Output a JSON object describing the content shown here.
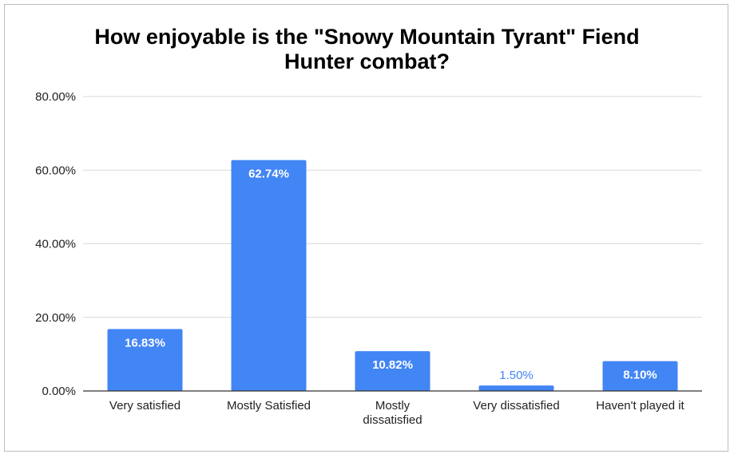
{
  "chart_data": {
    "type": "bar",
    "title_lines": [
      "How enjoyable is the \"Snowy Mountain Tyrant\" Fiend",
      "Hunter combat?"
    ],
    "categories": [
      [
        "Very satisfied"
      ],
      [
        "Mostly Satisfied"
      ],
      [
        "Mostly",
        "dissatisfied"
      ],
      [
        "Very dissatisfied"
      ],
      [
        "Haven't played it"
      ]
    ],
    "values": [
      16.83,
      62.74,
      10.82,
      1.5,
      8.1
    ],
    "data_labels": [
      "16.83%",
      "62.74%",
      "10.82%",
      "1.50%",
      "8.10%"
    ],
    "y_ticks": [
      0,
      20,
      40,
      60,
      80
    ],
    "y_tick_labels": [
      "0.00%",
      "20.00%",
      "40.00%",
      "60.00%",
      "80.00%"
    ],
    "ylim": [
      0,
      80
    ],
    "xlabel": "",
    "ylabel": "",
    "grid": true,
    "legend": "none",
    "colors": {
      "bar": "#4285f4",
      "label_inside": "#ffffff",
      "label_outside": "#4285f4",
      "grid": "#d9d9d9",
      "axis": "#333333",
      "tick_text": "#222222"
    }
  }
}
